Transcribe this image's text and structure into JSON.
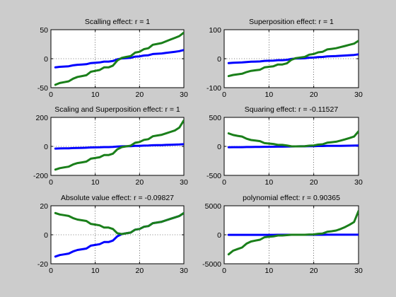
{
  "colors": {
    "figure_background": "#cccccc",
    "axes_background": "#ffffff",
    "series_blue": "#0000ff",
    "series_green": "#1a7f1a"
  },
  "chart_data": [
    {
      "type": "line",
      "title": "Scalling effect: r = 1",
      "xlim": [
        0,
        30
      ],
      "ylim": [
        -50,
        50
      ],
      "xticks": [
        0,
        10,
        20,
        30
      ],
      "yticks": [
        -50,
        0,
        50
      ],
      "grid": "dotted",
      "x": [
        1,
        2,
        3,
        4,
        5,
        6,
        7,
        8,
        9,
        10,
        11,
        12,
        13,
        14,
        15,
        16,
        17,
        18,
        19,
        20,
        21,
        22,
        23,
        24,
        25,
        26,
        27,
        28,
        29,
        30
      ],
      "series": [
        {
          "color": "blue",
          "values": [
            -15,
            -14,
            -13.5,
            -13,
            -11.5,
            -10.5,
            -10,
            -9.5,
            -7.5,
            -7,
            -6.5,
            -5,
            -5,
            -4,
            -1,
            0.5,
            1,
            1.5,
            3.5,
            4,
            5.5,
            6,
            8,
            8.5,
            9,
            10,
            11,
            12,
            13,
            15
          ]
        },
        {
          "color": "green",
          "values": [
            -45,
            -42,
            -40.5,
            -39,
            -34.5,
            -31.5,
            -30,
            -28.5,
            -22.5,
            -21,
            -19.5,
            -15,
            -15,
            -12,
            -3,
            1.5,
            3,
            4.5,
            10.5,
            12,
            16.5,
            18,
            24,
            25.5,
            27,
            30,
            33,
            36,
            39,
            45
          ]
        }
      ]
    },
    {
      "type": "line",
      "title": "Superposition effect: r = 1",
      "xlim": [
        0,
        30
      ],
      "ylim": [
        -100,
        100
      ],
      "xticks": [
        0,
        10,
        20,
        30
      ],
      "yticks": [
        -100,
        0,
        100
      ],
      "grid": "dotted",
      "x": [
        1,
        2,
        3,
        4,
        5,
        6,
        7,
        8,
        9,
        10,
        11,
        12,
        13,
        14,
        15,
        16,
        17,
        18,
        19,
        20,
        21,
        22,
        23,
        24,
        25,
        26,
        27,
        28,
        29,
        30
      ],
      "series": [
        {
          "color": "blue",
          "values": [
            -15,
            -14,
            -13.5,
            -13,
            -11.5,
            -10.5,
            -10,
            -9.5,
            -7.5,
            -7,
            -6.5,
            -5,
            -5,
            -4,
            -1,
            0.5,
            1,
            1.5,
            3.5,
            4,
            5.5,
            6,
            8,
            8.5,
            9,
            10,
            11,
            12,
            13,
            15
          ]
        },
        {
          "color": "green",
          "values": [
            -60,
            -56,
            -54,
            -52,
            -46,
            -42,
            -40,
            -38,
            -30,
            -28,
            -26,
            -20,
            -20,
            -16,
            -4,
            2,
            4,
            6,
            14,
            16,
            22,
            24,
            32,
            34,
            36,
            40,
            44,
            48,
            52,
            62
          ]
        }
      ]
    },
    {
      "type": "line",
      "title": "Scaling and Superposition effect: r = 1",
      "xlim": [
        0,
        30
      ],
      "ylim": [
        -200,
        200
      ],
      "xticks": [
        0,
        10,
        20,
        30
      ],
      "yticks": [
        -200,
        0,
        200
      ],
      "grid": "dotted",
      "x": [
        1,
        2,
        3,
        4,
        5,
        6,
        7,
        8,
        9,
        10,
        11,
        12,
        13,
        14,
        15,
        16,
        17,
        18,
        19,
        20,
        21,
        22,
        23,
        24,
        25,
        26,
        27,
        28,
        29,
        30
      ],
      "series": [
        {
          "color": "blue",
          "values": [
            -15,
            -14,
            -13.5,
            -13,
            -11.5,
            -10.5,
            -10,
            -9.5,
            -7.5,
            -7,
            -6.5,
            -5,
            -5,
            -4,
            -1,
            0.5,
            1,
            1.5,
            3.5,
            4,
            5.5,
            6,
            8,
            8.5,
            9,
            10,
            11,
            12,
            13,
            15
          ]
        },
        {
          "color": "green",
          "values": [
            -160,
            -150,
            -145,
            -140,
            -125,
            -115,
            -110,
            -105,
            -85,
            -80,
            -75,
            -60,
            -60,
            -50,
            -20,
            -5,
            0,
            5,
            25,
            30,
            45,
            50,
            70,
            75,
            80,
            90,
            100,
            110,
            130,
            180
          ]
        }
      ]
    },
    {
      "type": "line",
      "title": "Squaring effect: r = -0.11527",
      "xlim": [
        0,
        30
      ],
      "ylim": [
        -500,
        500
      ],
      "xticks": [
        0,
        10,
        20,
        30
      ],
      "yticks": [
        -500,
        0,
        500
      ],
      "grid": "dotted",
      "x": [
        1,
        2,
        3,
        4,
        5,
        6,
        7,
        8,
        9,
        10,
        11,
        12,
        13,
        14,
        15,
        16,
        17,
        18,
        19,
        20,
        21,
        22,
        23,
        24,
        25,
        26,
        27,
        28,
        29,
        30
      ],
      "series": [
        {
          "color": "blue",
          "values": [
            -15,
            -14,
            -13.5,
            -13,
            -11.5,
            -10.5,
            -10,
            -9.5,
            -7.5,
            -7,
            -6.5,
            -5,
            -5,
            -4,
            -1,
            0.5,
            1,
            1.5,
            3.5,
            4,
            5.5,
            6,
            8,
            8.5,
            9,
            10,
            11,
            12,
            13,
            15
          ]
        },
        {
          "color": "green",
          "values": [
            225,
            196,
            182,
            169,
            132,
            110,
            100,
            90,
            56,
            49,
            42,
            25,
            25,
            16,
            1,
            0.25,
            1,
            2.25,
            12,
            16,
            30,
            36,
            64,
            72,
            81,
            100,
            121,
            144,
            169,
            260
          ]
        }
      ]
    },
    {
      "type": "line",
      "title": "Absolute value effect: r = -0.09827",
      "xlim": [
        0,
        30
      ],
      "ylim": [
        -20,
        20
      ],
      "xticks": [
        0,
        10,
        20,
        30
      ],
      "yticks": [
        -20,
        0,
        20
      ],
      "grid": "dotted",
      "x": [
        1,
        2,
        3,
        4,
        5,
        6,
        7,
        8,
        9,
        10,
        11,
        12,
        13,
        14,
        15,
        16,
        17,
        18,
        19,
        20,
        21,
        22,
        23,
        24,
        25,
        26,
        27,
        28,
        29,
        30
      ],
      "series": [
        {
          "color": "blue",
          "values": [
            -15,
            -14,
            -13.5,
            -13,
            -11.5,
            -10.5,
            -10,
            -9.5,
            -7.5,
            -7,
            -6.5,
            -5,
            -5,
            -4,
            -1,
            0.5,
            1,
            1.5,
            3.5,
            4,
            5.5,
            6,
            8,
            8.5,
            9,
            10,
            11,
            12,
            13,
            15
          ]
        },
        {
          "color": "green",
          "values": [
            15,
            14,
            13.5,
            13,
            11.5,
            10.5,
            10,
            9.5,
            7.5,
            7,
            6.5,
            5,
            5,
            4,
            1,
            0.5,
            1,
            1.5,
            3.5,
            4,
            5.5,
            6,
            8,
            8.5,
            9,
            10,
            11,
            12,
            13,
            15
          ]
        }
      ]
    },
    {
      "type": "line",
      "title": "polynomial effect: r = 0.90365",
      "xlim": [
        0,
        30
      ],
      "ylim": [
        -5000,
        5000
      ],
      "xticks": [
        0,
        10,
        20,
        30
      ],
      "yticks": [
        -5000,
        0,
        5000
      ],
      "grid": "dotted",
      "x": [
        1,
        2,
        3,
        4,
        5,
        6,
        7,
        8,
        9,
        10,
        11,
        12,
        13,
        14,
        15,
        16,
        17,
        18,
        19,
        20,
        21,
        22,
        23,
        24,
        25,
        26,
        27,
        28,
        29,
        30
      ],
      "series": [
        {
          "color": "blue",
          "values": [
            -15,
            -14,
            -13.5,
            -13,
            -11.5,
            -10.5,
            -10,
            -9.5,
            -7.5,
            -7,
            -6.5,
            -5,
            -5,
            -4,
            -1,
            0.5,
            1,
            1.5,
            3.5,
            4,
            5.5,
            6,
            8,
            8.5,
            9,
            10,
            11,
            12,
            13,
            15
          ]
        },
        {
          "color": "green",
          "values": [
            -3375,
            -2744,
            -2460,
            -2197,
            -1521,
            -1158,
            -1000,
            -857,
            -422,
            -343,
            -275,
            -125,
            -125,
            -64,
            -1,
            0.1,
            1,
            3.4,
            43,
            64,
            166,
            216,
            512,
            614,
            729,
            1000,
            1331,
            1728,
            2200,
            4100
          ]
        }
      ]
    }
  ]
}
